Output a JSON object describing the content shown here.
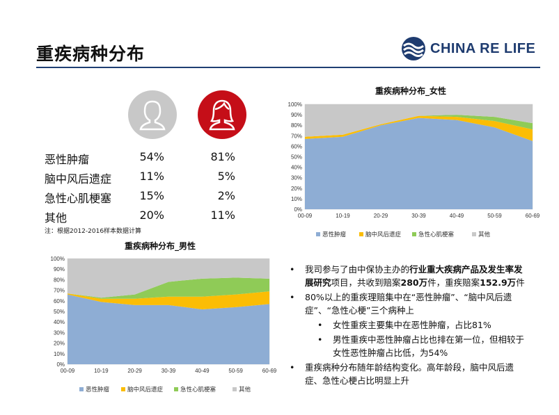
{
  "header": {
    "title": "重疾病种分布",
    "logo_text": "CHINA RE LIFE"
  },
  "stats": {
    "rows": [
      {
        "label": "恶性肿瘤",
        "male": "54%",
        "female": "81%"
      },
      {
        "label": "脑中风后遗症",
        "male": "11%",
        "female": "5%"
      },
      {
        "label": "急性心肌梗塞",
        "male": "15%",
        "female": "2%"
      },
      {
        "label": "其他",
        "male": "20%",
        "female": "11%"
      }
    ],
    "note": "注：根据2012-2016样本数据计算"
  },
  "chart_data": [
    {
      "type": "area",
      "stacked": "percent",
      "title": "重疾病种分布_女性",
      "categories": [
        "00-09",
        "10-19",
        "20-29",
        "30-39",
        "40-49",
        "50-59",
        "60-69"
      ],
      "yticks": [
        "0%",
        "10%",
        "20%",
        "30%",
        "40%",
        "50%",
        "60%",
        "70%",
        "80%",
        "90%",
        "100%"
      ],
      "ylim": [
        0,
        100
      ],
      "legend": "bottom",
      "series": [
        {
          "name": "恶性肿瘤",
          "color": "#8eadd4",
          "values": [
            67,
            69,
            80,
            87,
            85,
            78,
            65
          ]
        },
        {
          "name": "脑中风后遗症",
          "color": "#fbbd05",
          "values": [
            2,
            2,
            1,
            2,
            3,
            6,
            11
          ]
        },
        {
          "name": "急性心肌梗塞",
          "color": "#8fcb57",
          "values": [
            0,
            0,
            0,
            0,
            2,
            4,
            6
          ]
        },
        {
          "name": "其他",
          "color": "#c8c8c8",
          "values": [
            31,
            29,
            19,
            11,
            10,
            12,
            18
          ]
        }
      ]
    },
    {
      "type": "area",
      "stacked": "percent",
      "title": "重疾病种分布_男性",
      "categories": [
        "00-09",
        "10-19",
        "20-29",
        "30-39",
        "40-49",
        "50-59",
        "60-69"
      ],
      "yticks": [
        "0%",
        "10%",
        "20%",
        "30%",
        "40%",
        "50%",
        "60%",
        "70%",
        "80%",
        "90%",
        "100%"
      ],
      "ylim": [
        0,
        100
      ],
      "legend": "bottom",
      "series": [
        {
          "name": "恶性肿瘤",
          "color": "#8eadd4",
          "values": [
            66,
            59,
            56,
            56,
            52,
            54,
            57
          ]
        },
        {
          "name": "脑中风后遗症",
          "color": "#fbbd05",
          "values": [
            1,
            3,
            6,
            8,
            12,
            12,
            12
          ]
        },
        {
          "name": "急性心肌梗塞",
          "color": "#8fcb57",
          "values": [
            0,
            1,
            4,
            14,
            17,
            16,
            12
          ]
        },
        {
          "name": "其他",
          "color": "#c8c8c8",
          "values": [
            33,
            37,
            34,
            22,
            19,
            18,
            19
          ]
        }
      ]
    }
  ],
  "bullets": {
    "b1_pre": "我司参与了由中保协主办的",
    "b1_bold1": "行业重大疾病产品及发生率发展研究",
    "b1_mid1": "项目，共收到赔案",
    "b1_bold2": "280万",
    "b1_mid2": "件，重疾赔案",
    "b1_bold3": "152.9万",
    "b1_post": "件",
    "b2": "80%以上的重疾理赔集中在“恶性肿瘤”、“脑中风后遗症”、“急性心梗”三个病种上",
    "s1": "女性重疾主要集中在恶性肿瘤，占比81%",
    "s2": "男性重疾中恶性肿瘤占比也排在第一位，但相较于女性恶性肿瘤占比低，为54%",
    "b3": "重疾病种分布随年龄结构变化。高年龄段，脑中风后遗症、急性心梗占比明显上升",
    "dot": "•"
  }
}
